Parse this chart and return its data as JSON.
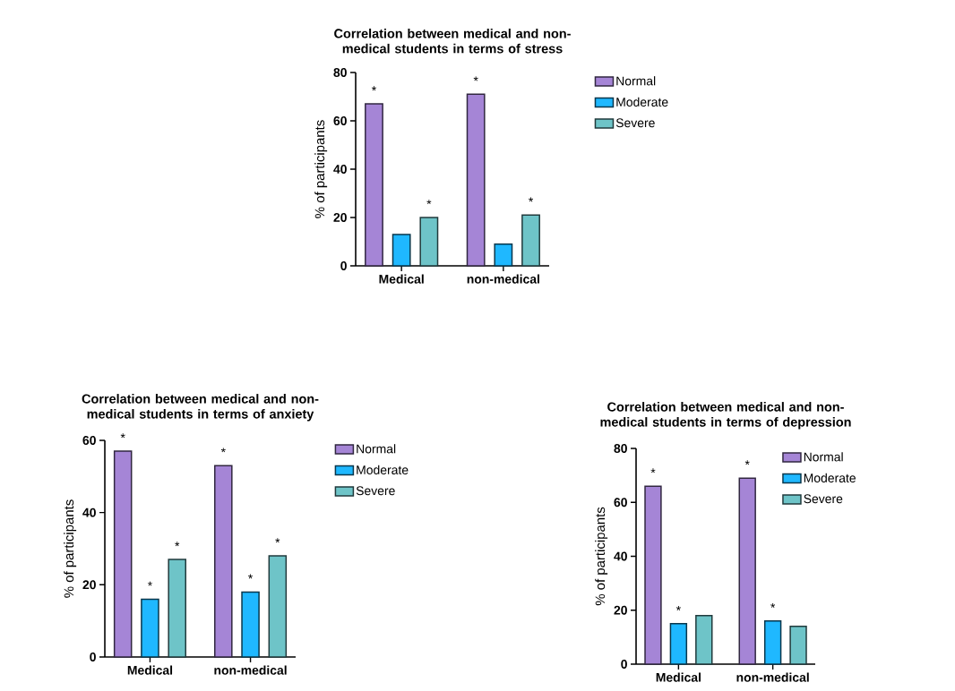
{
  "chart_data": [
    {
      "type": "bar",
      "title": "Correlation between medical and non-medical students in terms of stress",
      "ylabel": "% of participants",
      "categories": [
        "Medical",
        "non-medical"
      ],
      "series": [
        {
          "name": "Normal",
          "color": "#a585d6",
          "values": [
            67,
            71
          ],
          "value_labels": [
            "*",
            "*"
          ]
        },
        {
          "name": "Moderate",
          "color": "#1fb8ff",
          "values": [
            13,
            9
          ],
          "value_labels": [
            null,
            null
          ]
        },
        {
          "name": "Severe",
          "color": "#6ec4c8",
          "values": [
            20,
            21
          ],
          "value_labels": [
            "*",
            "*"
          ]
        }
      ],
      "ylim": [
        0,
        80
      ],
      "yticks": [
        0,
        20,
        40,
        60,
        80
      ],
      "legend": "right"
    },
    {
      "type": "bar",
      "title": "Correlation between medical and non-medical students in terms of anxiety",
      "ylabel": "% of participants",
      "categories": [
        "Medical",
        "non-medical"
      ],
      "series": [
        {
          "name": "Normal",
          "color": "#a585d6",
          "values": [
            57,
            53
          ],
          "value_labels": [
            "*",
            "*"
          ]
        },
        {
          "name": "Moderate",
          "color": "#1fb8ff",
          "values": [
            16,
            18
          ],
          "value_labels": [
            "*",
            "*"
          ]
        },
        {
          "name": "Severe",
          "color": "#6ec4c8",
          "values": [
            27,
            28
          ],
          "value_labels": [
            "*",
            "*"
          ]
        }
      ],
      "ylim": [
        0,
        60
      ],
      "yticks": [
        0,
        20,
        40,
        60
      ],
      "legend": "right"
    },
    {
      "type": "bar",
      "title": "Correlation between medical and non-medical students in terms of depression",
      "ylabel": "% of participants",
      "categories": [
        "Medical",
        "non-medical"
      ],
      "series": [
        {
          "name": "Normal",
          "color": "#a585d6",
          "values": [
            66,
            69
          ],
          "value_labels": [
            "*",
            "*"
          ]
        },
        {
          "name": "Moderate",
          "color": "#1fb8ff",
          "values": [
            15,
            16
          ],
          "value_labels": [
            "*",
            "*"
          ]
        },
        {
          "name": "Severe",
          "color": "#6ec4c8",
          "values": [
            18,
            14
          ],
          "value_labels": [
            null,
            null
          ]
        }
      ],
      "ylim": [
        0,
        80
      ],
      "yticks": [
        0,
        20,
        40,
        60,
        80
      ],
      "legend": "right"
    }
  ]
}
